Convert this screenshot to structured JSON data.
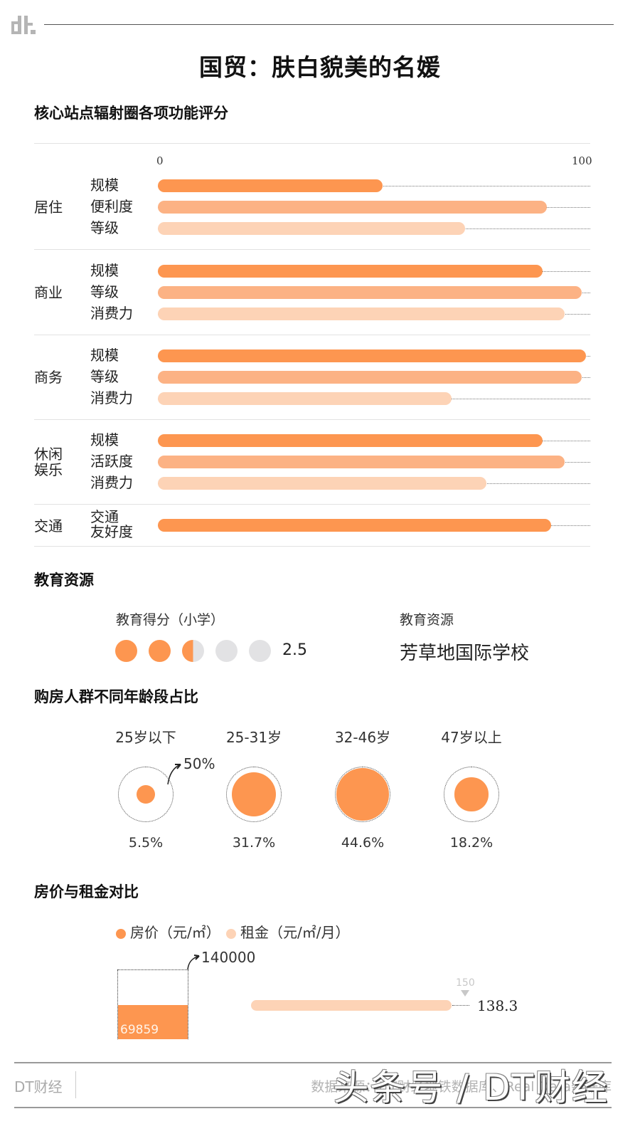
{
  "header": {
    "logo_text": "dt.",
    "title": "国贸：肤白貌美的名媛"
  },
  "colors": {
    "bar_dark": "#fd9650",
    "bar_mid": "#fcb284",
    "bar_light": "#fdd3b6",
    "dot_empty": "#e2e2e4",
    "rule": "#e2e2e2"
  },
  "function_section": {
    "title": "核心站点辐射圈各项功能评分",
    "axis_min": "0",
    "axis_max": "100"
  },
  "education": {
    "title": "教育资源",
    "score_label": "教育得分（小学）",
    "score_value": "2.5",
    "resource_label": "教育资源",
    "resource_value": "芳草地国际学校"
  },
  "age_section": {
    "title": "购房人群不同年龄段占比",
    "ring_reference": "50%"
  },
  "price_section": {
    "title": "房价与租金对比",
    "legend_price": "房价（元/㎡）",
    "legend_rent": "租金（元/㎡/月）",
    "price_max_label": "140000",
    "price_value_label": "69859",
    "rent_max_label": "150",
    "rent_value_label": "138.3"
  },
  "footer": {
    "brand": "DT财经",
    "source": "数据来源：DT财经地铁数据库、Real Data数据库",
    "watermark": "头条号 / DT财经"
  },
  "chart_data": [
    {
      "type": "bar",
      "orientation": "horizontal",
      "title": "核心站点辐射圈各项功能评分",
      "xlim": [
        0,
        100
      ],
      "xticks": [
        "0",
        "100"
      ],
      "groups": [
        {
          "category": "居住",
          "items": [
            {
              "label": "规模",
              "value": 52,
              "shade": "dark"
            },
            {
              "label": "便利度",
              "value": 90,
              "shade": "mid"
            },
            {
              "label": "等级",
              "value": 71,
              "shade": "light"
            }
          ]
        },
        {
          "category": "商业",
          "items": [
            {
              "label": "规模",
              "value": 89,
              "shade": "dark"
            },
            {
              "label": "等级",
              "value": 98,
              "shade": "mid"
            },
            {
              "label": "消费力",
              "value": 94,
              "shade": "light"
            }
          ]
        },
        {
          "category": "商务",
          "items": [
            {
              "label": "规模",
              "value": 99,
              "shade": "dark"
            },
            {
              "label": "等级",
              "value": 98,
              "shade": "mid"
            },
            {
              "label": "消费力",
              "value": 68,
              "shade": "light"
            }
          ]
        },
        {
          "category": "休闲娱乐",
          "items": [
            {
              "label": "规模",
              "value": 89,
              "shade": "dark"
            },
            {
              "label": "活跃度",
              "value": 94,
              "shade": "mid"
            },
            {
              "label": "消费力",
              "value": 76,
              "shade": "light"
            }
          ]
        },
        {
          "category": "交通",
          "items": [
            {
              "label": "交通友好度",
              "value": 91,
              "shade": "dark"
            }
          ]
        }
      ]
    },
    {
      "type": "rating",
      "title": "教育得分（小学）",
      "value": 2.5,
      "max": 5
    },
    {
      "type": "bubble",
      "title": "购房人群不同年龄段占比",
      "categories": [
        "25岁以下",
        "25-31岁",
        "32-46岁",
        "47岁以上"
      ],
      "values": [
        5.5,
        31.7,
        44.6,
        18.2
      ],
      "labels": [
        "5.5%",
        "31.7%",
        "44.6%",
        "18.2%"
      ],
      "reference_ring": 50,
      "unit": "%"
    },
    {
      "type": "bar",
      "title": "房价与租金对比",
      "series": [
        {
          "name": "房价（元/㎡）",
          "value": 69859,
          "max": 140000,
          "orientation": "vertical"
        },
        {
          "name": "租金（元/㎡/月）",
          "value": 138.3,
          "max": 150,
          "orientation": "horizontal"
        }
      ]
    }
  ]
}
